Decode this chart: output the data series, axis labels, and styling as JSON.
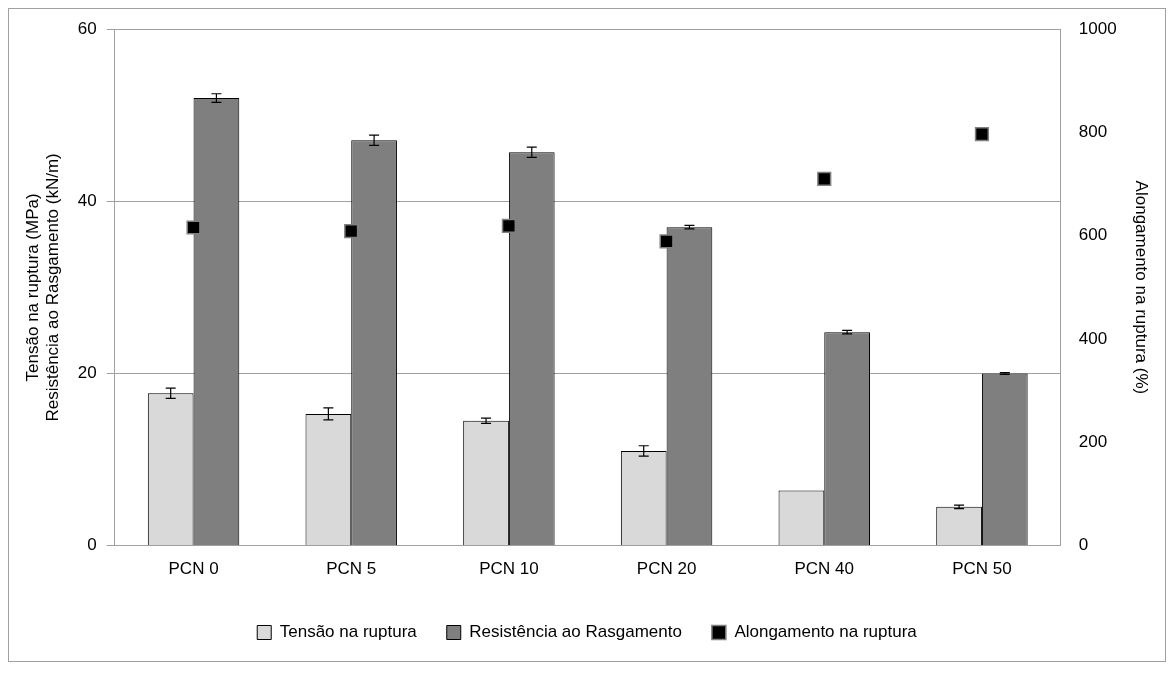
{
  "chart_data": {
    "type": "bar",
    "categories": [
      "PCN 0",
      "PCN 5",
      "PCN 10",
      "PCN 20",
      "PCN 40",
      "PCN 50"
    ],
    "ylabel": "Tensão na ruptura (MPa)\nResistência ao Rasgamento (kN/m)",
    "y2label": "Alongamento na ruptura (%)",
    "series": [
      {
        "name": "Tensão na ruptura",
        "color": "#d9d9d9",
        "values": [
          17.7,
          15.3,
          14.5,
          11.0,
          6.4,
          4.5
        ],
        "errors": [
          0.6,
          0.7,
          0.3,
          0.6,
          null,
          0.2
        ]
      },
      {
        "name": "Resistência ao Rasgamento",
        "color": "#7f7f7f",
        "values": [
          52.0,
          47.1,
          45.7,
          37.0,
          24.8,
          20.0
        ],
        "errors": [
          0.5,
          0.6,
          0.6,
          0.2,
          0.2,
          0.1
        ]
      },
      {
        "name": "Alongamento na ruptura",
        "type": "scatter",
        "axis": "y2",
        "marker": "square",
        "color": "#000000",
        "values": [
          616,
          609,
          619,
          589,
          710,
          797
        ]
      }
    ],
    "ylim": [
      0,
      60
    ],
    "yticks": [
      0,
      20,
      40,
      60
    ],
    "y2lim": [
      0,
      1000
    ],
    "y2ticks": [
      0,
      200,
      400,
      600,
      800,
      1000
    ],
    "grid": "y",
    "legend": "bottom"
  }
}
